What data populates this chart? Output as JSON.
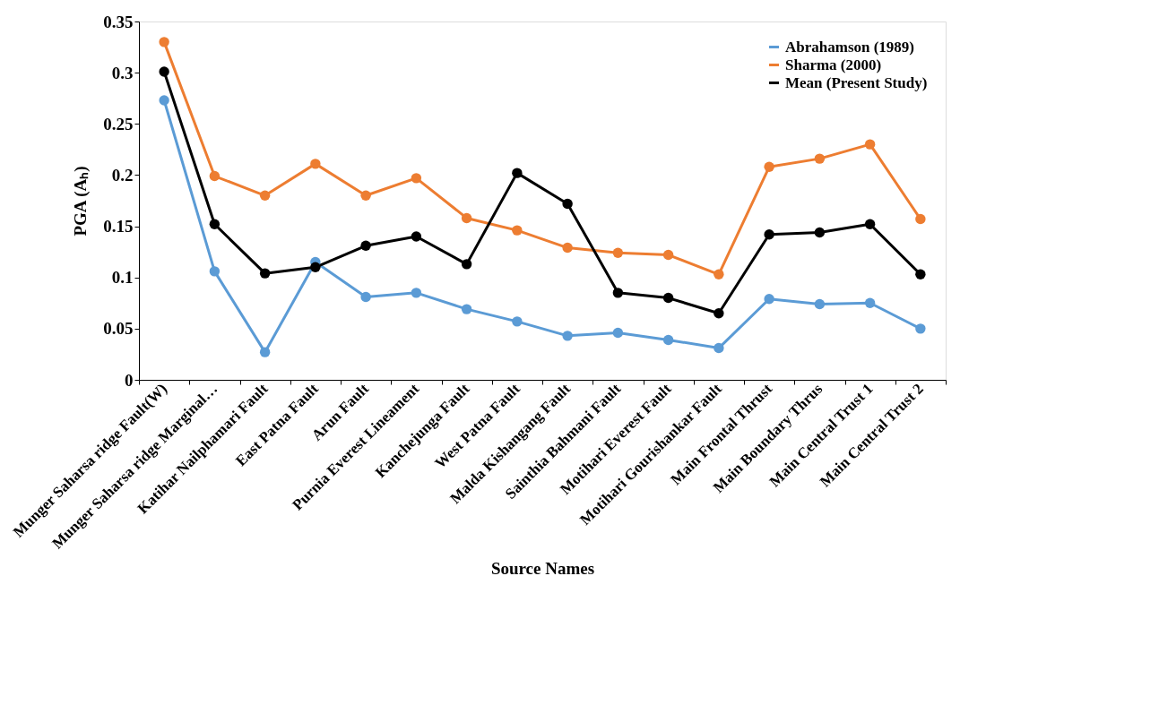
{
  "chart_data": {
    "type": "line",
    "xlabel": "Source Names",
    "ylabel": "PGA (Aₕ)",
    "categories": [
      "Munger Saharsa ridge Fault(W)",
      "Munger Saharsa ridge Marginal…",
      "Katihar Nailphamari Fault",
      "East Patna Fault",
      "Arun Fault",
      "Purnia Everest Lineament",
      "Kanchejunga Fault",
      "West Patna Fault",
      "Malda Kishangang Fault",
      "Sainthia Bahmani Fault",
      "Motihari Everest Fault",
      "Motihari Gourishankar Fault",
      "Main Frontal Thrust",
      "Main Boundary Thrus",
      "Main Central Trust 1",
      "Main Central Trust 2"
    ],
    "series": [
      {
        "name": "Abrahamson (1989)",
        "color": "#5b9bd5",
        "values": [
          0.273,
          0.106,
          0.027,
          0.115,
          0.081,
          0.085,
          0.069,
          0.057,
          0.043,
          0.046,
          0.039,
          0.031,
          0.079,
          0.074,
          0.075,
          0.05
        ]
      },
      {
        "name": "Sharma (2000)",
        "color": "#ed7d31",
        "values": [
          0.33,
          0.199,
          0.18,
          0.211,
          0.18,
          0.197,
          0.158,
          0.146,
          0.129,
          0.124,
          0.122,
          0.103,
          0.208,
          0.216,
          0.23,
          0.157
        ]
      },
      {
        "name": "Mean (Present Study)",
        "color": "#000000",
        "values": [
          0.301,
          0.152,
          0.104,
          0.11,
          0.131,
          0.14,
          0.113,
          0.202,
          0.172,
          0.085,
          0.08,
          0.065,
          0.142,
          0.144,
          0.152,
          0.103
        ]
      }
    ],
    "ylim": [
      0,
      0.35
    ],
    "yticks": [
      0,
      0.05,
      0.1,
      0.15,
      0.2,
      0.25,
      0.3,
      0.35
    ],
    "grid": false,
    "legend": "top right",
    "marker": "circle",
    "line_style": "solid"
  }
}
